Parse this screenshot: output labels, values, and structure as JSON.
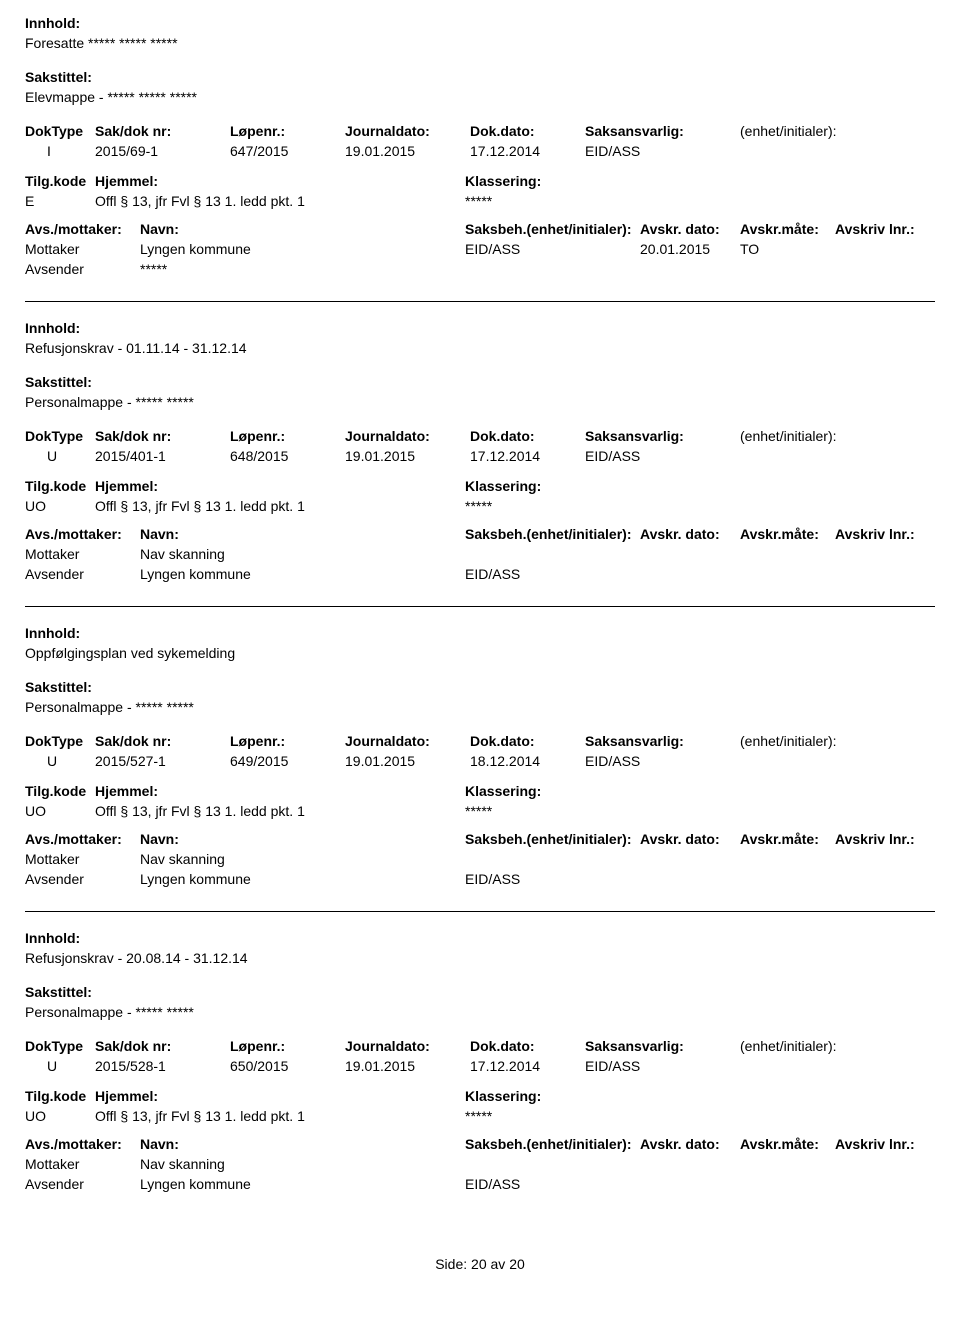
{
  "labels": {
    "innhold": "Innhold:",
    "sakstittel": "Sakstittel:",
    "doktype": "DokType",
    "sakdok": "Sak/dok nr:",
    "lopenr": "Løpenr.:",
    "journaldato": "Journaldato:",
    "dokdato": "Dok.dato:",
    "saksansvarlig": "Saksansvarlig:",
    "enhet": "(enhet/initialer):",
    "tilgkode": "Tilg.kode",
    "hjemmel": "Hjemmel:",
    "klassering": "Klassering:",
    "avsmottaker": "Avs./mottaker:",
    "navn": "Navn:",
    "saksbeh": "Saksbeh.(enhet/initialer):",
    "avskrdato": "Avskr. dato:",
    "avskrmate": "Avskr.måte:",
    "avskrivlnr": "Avskriv lnr.:",
    "mottaker": "Mottaker",
    "avsender": "Avsender"
  },
  "footer": {
    "side_label": "Side:",
    "page": "20",
    "av": "av",
    "total": "20"
  },
  "entries": [
    {
      "innhold": "Foresatte ***** ***** *****",
      "sakstittel": "Elevmappe - ***** ***** *****",
      "doktype": "I",
      "sakdok": "2015/69-1",
      "lopenr": "647/2015",
      "journaldato": "19.01.2015",
      "dokdato": "17.12.2014",
      "saksansvarlig": "EID/ASS",
      "tilgkode": "E",
      "hjemmel": "Offl § 13, jfr Fvl § 13 1. ledd pkt. 1",
      "klassering": "*****",
      "mottaker_navn": "Lyngen kommune",
      "mottaker_saksbeh": "EID/ASS",
      "mottaker_avskrdato": "20.01.2015",
      "mottaker_avskrmate": "TO",
      "avsender_navn": "*****",
      "avsender_saksbeh": ""
    },
    {
      "innhold": "Refusjonskrav - 01.11.14 - 31.12.14",
      "sakstittel": "Personalmappe - ***** *****",
      "doktype": "U",
      "sakdok": "2015/401-1",
      "lopenr": "648/2015",
      "journaldato": "19.01.2015",
      "dokdato": "17.12.2014",
      "saksansvarlig": "EID/ASS",
      "tilgkode": "UO",
      "hjemmel": "Offl § 13, jfr Fvl § 13 1. ledd pkt. 1",
      "klassering": "*****",
      "mottaker_navn": "Nav skanning",
      "mottaker_saksbeh": "",
      "mottaker_avskrdato": "",
      "mottaker_avskrmate": "",
      "avsender_navn": "Lyngen kommune",
      "avsender_saksbeh": "EID/ASS"
    },
    {
      "innhold": "Oppfølgingsplan ved sykemelding",
      "sakstittel": "Personalmappe - ***** *****",
      "doktype": "U",
      "sakdok": "2015/527-1",
      "lopenr": "649/2015",
      "journaldato": "19.01.2015",
      "dokdato": "18.12.2014",
      "saksansvarlig": "EID/ASS",
      "tilgkode": "UO",
      "hjemmel": "Offl § 13, jfr Fvl § 13 1. ledd pkt. 1",
      "klassering": "*****",
      "mottaker_navn": "Nav skanning",
      "mottaker_saksbeh": "",
      "mottaker_avskrdato": "",
      "mottaker_avskrmate": "",
      "avsender_navn": "Lyngen kommune",
      "avsender_saksbeh": "EID/ASS"
    },
    {
      "innhold": "Refusjonskrav - 20.08.14 - 31.12.14",
      "sakstittel": "Personalmappe - ***** *****",
      "doktype": "U",
      "sakdok": "2015/528-1",
      "lopenr": "650/2015",
      "journaldato": "19.01.2015",
      "dokdato": "17.12.2014",
      "saksansvarlig": "EID/ASS",
      "tilgkode": "UO",
      "hjemmel": "Offl § 13, jfr Fvl § 13 1. ledd pkt. 1",
      "klassering": "*****",
      "mottaker_navn": "Nav skanning",
      "mottaker_saksbeh": "",
      "mottaker_avskrdato": "",
      "mottaker_avskrmate": "",
      "avsender_navn": "Lyngen kommune",
      "avsender_saksbeh": "EID/ASS"
    }
  ]
}
